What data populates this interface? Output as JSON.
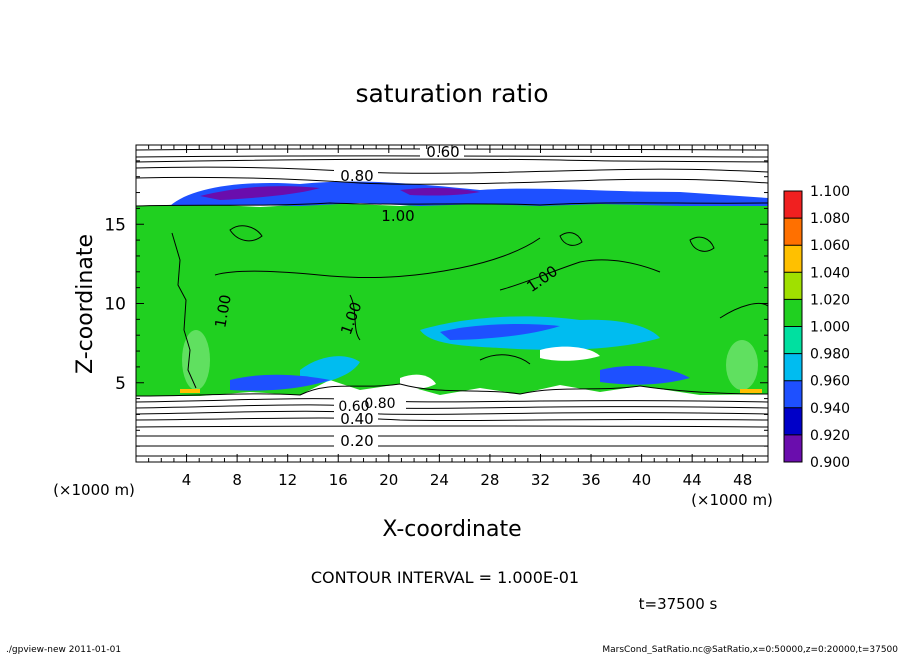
{
  "chart_data": {
    "type": "heatmap",
    "title": "saturation ratio",
    "xlabel": "X-coordinate",
    "ylabel": "Z-coordinate",
    "x_unit_label": "(×1000 m)",
    "y_unit_label": "(×1000 m)",
    "xlim": [
      0,
      50
    ],
    "ylim": [
      0,
      20
    ],
    "x_ticks": [
      "4",
      "8",
      "12",
      "16",
      "20",
      "24",
      "28",
      "32",
      "36",
      "40",
      "44",
      "48"
    ],
    "y_ticks": [
      "5",
      "10",
      "15"
    ],
    "colorbar": {
      "levels": [
        "0.900",
        "0.920",
        "0.940",
        "0.960",
        "0.980",
        "1.000",
        "1.020",
        "1.040",
        "1.060",
        "1.080",
        "1.100"
      ],
      "colors": [
        "#6a0dad",
        "#0000c8",
        "#1e50ff",
        "#00bcf0",
        "#00e0a0",
        "#20d020",
        "#a0e000",
        "#ffc000",
        "#ff7000",
        "#f02020",
        "#ff8080"
      ]
    },
    "contour_labels": [
      "0.60",
      "0.80",
      "1.00",
      "1.00",
      "1.00",
      "1.00",
      "0.80",
      "0.60",
      "0.40",
      "0.20"
    ],
    "contour_interval_label": "CONTOUR INTERVAL = 1.000E-01",
    "time_label": "t=37500 s"
  },
  "footer": {
    "left": "./gpview-new  2011-01-01",
    "right": "MarsCond_SatRatio.nc@SatRatio,x=0:50000,z=0:20000,t=37500"
  }
}
